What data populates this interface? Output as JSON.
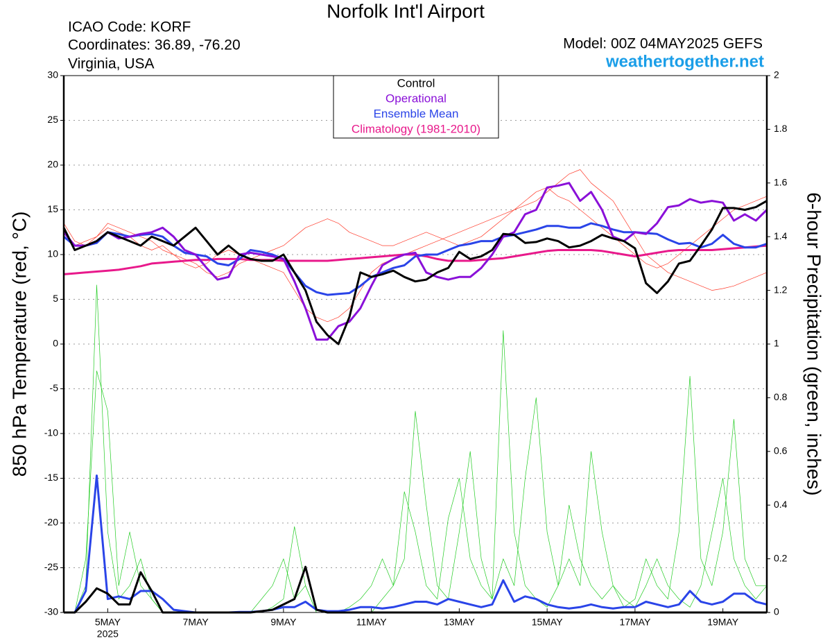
{
  "chart_data": {
    "type": "line",
    "title": "Norfolk Int'l Airport",
    "info_left": [
      "ICAO Code: KORF",
      "Coordinates: 36.89, -76.20",
      "Virginia, USA"
    ],
    "info_right": "Model: 00Z 04MAY2025 GEFS",
    "site": "weathertogether.net",
    "ylabel": "850 hPa Temperature (red, °C)",
    "y2label": "6-hour Precipitation (green, inches)",
    "year_label": "2025",
    "categories": [
      null,
      null,
      null,
      null,
      "5MAY",
      null,
      null,
      null,
      null,
      null,
      null,
      null,
      "7MAY",
      null,
      null,
      null,
      null,
      null,
      null,
      null,
      "9MAY",
      null,
      null,
      null,
      null,
      null,
      null,
      null,
      "11MAY",
      null,
      null,
      null,
      null,
      null,
      null,
      null,
      "13MAY",
      null,
      null,
      null,
      null,
      null,
      null,
      null,
      "15MAY",
      null,
      null,
      null,
      null,
      null,
      null,
      null,
      "17MAY",
      null,
      null,
      null,
      null,
      null,
      null,
      null,
      "19MAY",
      null,
      null,
      null,
      null
    ],
    "ylim": [
      -30,
      30
    ],
    "yticks": [
      -30,
      -25,
      -20,
      -15,
      -10,
      -5,
      0,
      5,
      10,
      15,
      20,
      25,
      30
    ],
    "y2lim": [
      0,
      2
    ],
    "y2ticks": [
      0,
      0.2,
      0.4,
      0.6,
      0.8,
      1,
      1.2,
      1.4,
      1.6,
      1.8,
      2
    ],
    "grid": true,
    "legend": "top-center",
    "series": [
      {
        "color": "#ff3a2a",
        "width": 0.7,
        "values": [
          13.5,
          11.5,
          11,
          12,
          13,
          12.5,
          12,
          11,
          10.5,
          11,
          10,
          9,
          8.5,
          9,
          10,
          10.5,
          10,
          9.5,
          9,
          8.5,
          8,
          6,
          4,
          3,
          2.5,
          3,
          4,
          6,
          8,
          9,
          9.5,
          10,
          10.5,
          11,
          11.5,
          12,
          12.5,
          13,
          13.5,
          14,
          14.5,
          15,
          15.5,
          16,
          17,
          18,
          19,
          19.5,
          18,
          17,
          16,
          14,
          12,
          10,
          9,
          8,
          7.5,
          7,
          6.5,
          6,
          6.2,
          6.5,
          7,
          7.5,
          8
        ]
      },
      {
        "color": "#ff3a2a",
        "width": 0.7,
        "values": [
          12,
          11,
          11.5,
          12,
          13.5,
          13,
          12.5,
          12,
          11.5,
          10.5,
          10,
          9.5,
          9,
          8,
          7.5,
          8,
          9,
          9.5,
          10,
          10.5,
          11,
          12,
          13,
          13.5,
          14,
          13.5,
          12.5,
          12,
          11.5,
          11,
          11,
          11.5,
          12,
          12.5,
          12,
          11.5,
          11,
          11.5,
          12,
          13,
          14,
          15,
          16,
          17,
          17.5,
          16.5,
          16,
          15,
          14,
          13,
          12,
          11,
          10,
          9,
          8.5,
          9,
          10,
          11,
          12,
          13,
          14,
          15,
          15.5,
          16,
          16.5
        ]
      },
      {
        "color": "#22cc22",
        "width": 0.7,
        "axis": "y2",
        "values": [
          0,
          0,
          0.1,
          1.22,
          0.3,
          0.05,
          0.1,
          0.2,
          0.05,
          0,
          0,
          0,
          0,
          0,
          0,
          0,
          0,
          0,
          0,
          0.02,
          0.05,
          0.32,
          0.1,
          0,
          0,
          0,
          0,
          0,
          0,
          0.05,
          0.1,
          0.2,
          0.75,
          0.4,
          0.1,
          0.05,
          0.3,
          0.6,
          0.2,
          0.05,
          1.05,
          0.3,
          0.1,
          0.05,
          0.02,
          0.1,
          0.4,
          0.2,
          0.1,
          0.05,
          0.1,
          0.02,
          0.05,
          0.2,
          0.1,
          0.05,
          0.3,
          0.88,
          0.2,
          0.1,
          0.3,
          0.72,
          0.2,
          0.1,
          0.1
        ]
      },
      {
        "color": "#22cc22",
        "width": 0.7,
        "axis": "y2",
        "values": [
          0,
          0,
          0.2,
          0.9,
          0.75,
          0.1,
          0.3,
          0.1,
          0.05,
          0,
          0,
          0,
          0,
          0,
          0,
          0,
          0,
          0,
          0.05,
          0.1,
          0.2,
          0.05,
          0.1,
          0,
          0,
          0,
          0.02,
          0.05,
          0.1,
          0.2,
          0.1,
          0.45,
          0.3,
          0.1,
          0.05,
          0.35,
          0.5,
          0.2,
          0.1,
          0.05,
          0.2,
          0.1,
          0.5,
          0.8,
          0.3,
          0.1,
          0.2,
          0.1,
          0.6,
          0.3,
          0.1,
          0.05,
          0.02,
          0.1,
          0.2,
          0.1,
          0.05,
          0.02,
          0.1,
          0.3,
          0.5,
          0.2,
          0.1,
          0.05,
          0.1
        ]
      },
      {
        "name": "Climatology (1981-2010)",
        "color": "#e8198b",
        "width": 3,
        "values": [
          7.8,
          7.9,
          8.0,
          8.1,
          8.2,
          8.3,
          8.5,
          8.7,
          9.0,
          9.1,
          9.2,
          9.3,
          9.4,
          9.4,
          9.5,
          9.5,
          9.5,
          9.4,
          9.4,
          9.4,
          9.3,
          9.3,
          9.3,
          9.3,
          9.3,
          9.4,
          9.5,
          9.6,
          9.7,
          9.8,
          9.9,
          10.0,
          10.0,
          9.8,
          9.5,
          9.3,
          9.3,
          9.3,
          9.4,
          9.5,
          9.6,
          9.8,
          10.0,
          10.2,
          10.4,
          10.5,
          10.5,
          10.5,
          10.5,
          10.4,
          10.2,
          10.0,
          9.8,
          10.0,
          10.2,
          10.4,
          10.5,
          10.5,
          10.5,
          10.5,
          10.6,
          10.7,
          10.8,
          10.9,
          11.0
        ]
      },
      {
        "name": "Ensemble Mean",
        "color": "#2a44e8",
        "width": 3,
        "values": [
          12,
          11,
          11,
          11.3,
          12.5,
          12.3,
          12,
          12.2,
          12.3,
          12,
          11,
          10.2,
          10,
          9.8,
          9,
          8.8,
          9.5,
          10.5,
          10.3,
          10,
          9.5,
          8,
          6.5,
          5.8,
          5.5,
          5.6,
          5.7,
          6.5,
          7.5,
          8,
          8.5,
          8.8,
          9.8,
          10,
          10,
          10.5,
          11,
          11.2,
          11.5,
          11.5,
          12,
          12.2,
          12.5,
          12.8,
          13.2,
          13.2,
          13,
          13,
          13.5,
          13.2,
          12.8,
          12.5,
          12.5,
          12.4,
          12.3,
          11.7,
          11.2,
          11.3,
          10.8,
          11.2,
          12.2,
          11.2,
          10.8,
          10.8,
          11.2
        ]
      },
      {
        "name": "Operational",
        "color": "#8a10d8",
        "width": 3,
        "values": [
          12.5,
          11,
          11,
          11.5,
          12.5,
          11.8,
          12,
          12.3,
          12.5,
          13,
          12,
          10.5,
          10,
          8.5,
          7.2,
          7.5,
          10,
          10.2,
          10,
          9.8,
          9.5,
          7,
          4,
          0.5,
          0.5,
          2,
          2.5,
          4,
          6.5,
          8.8,
          9.5,
          10,
          10.2,
          8,
          7.5,
          7.2,
          7.5,
          7.5,
          8.5,
          10,
          12,
          12.5,
          14.5,
          15,
          17.5,
          17.7,
          18,
          16,
          17,
          15,
          12,
          11.5,
          12.5,
          12.3,
          13.5,
          15.3,
          15.5,
          16.2,
          15.8,
          16,
          15.8,
          13.8,
          14.5,
          13.8,
          15
        ]
      },
      {
        "name": "Control",
        "color": "#000000",
        "width": 3,
        "values": [
          13,
          10.5,
          11,
          11.5,
          12.5,
          12,
          11.5,
          11,
          12,
          11.5,
          11,
          12,
          13,
          11.5,
          10,
          11,
          10,
          9.5,
          9.3,
          9.3,
          10,
          8,
          6,
          2.5,
          1,
          0,
          3,
          8,
          7.5,
          7.8,
          8.2,
          7.5,
          7,
          7.2,
          8,
          8.5,
          10.3,
          9.5,
          9.8,
          10.5,
          12.3,
          12.2,
          11.3,
          11.4,
          11.8,
          11.5,
          10.8,
          11,
          11.5,
          12.2,
          11.8,
          11.5,
          10.7,
          6.8,
          5.7,
          7,
          9,
          9.3,
          11,
          12.8,
          15.2,
          15.2,
          15,
          15.3,
          16
        ]
      },
      {
        "color": "#2a44e8",
        "width": 3,
        "axis": "y2",
        "values": [
          0,
          0,
          0.08,
          0.51,
          0.05,
          0.06,
          0.05,
          0.08,
          0.08,
          0.05,
          0.01,
          0.005,
          0,
          0,
          0,
          0,
          0.002,
          0.002,
          0.005,
          0.01,
          0.02,
          0.02,
          0.04,
          0.01,
          0.005,
          0.005,
          0.01,
          0.02,
          0.02,
          0.015,
          0.02,
          0.03,
          0.04,
          0.04,
          0.03,
          0.05,
          0.04,
          0.03,
          0.02,
          0.03,
          0.12,
          0.04,
          0.06,
          0.05,
          0.03,
          0.02,
          0.015,
          0.02,
          0.03,
          0.02,
          0.015,
          0.02,
          0.02,
          0.04,
          0.03,
          0.02,
          0.03,
          0.08,
          0.04,
          0.03,
          0.04,
          0.07,
          0.07,
          0.04,
          0.03
        ]
      },
      {
        "color": "#000000",
        "width": 3,
        "axis": "y2",
        "values": [
          0,
          0,
          0.04,
          0.09,
          0.07,
          0.03,
          0.03,
          0.15,
          0.08,
          0,
          0,
          0,
          0,
          0,
          0,
          0,
          0,
          0,
          0.005,
          0.01,
          0.03,
          0.05,
          0.17,
          0.01,
          0,
          0,
          0,
          0,
          0,
          0,
          0,
          0,
          0,
          0,
          0,
          0,
          0,
          0,
          0,
          0,
          0,
          0,
          0,
          0,
          0,
          0,
          0,
          0,
          0,
          0,
          0,
          0,
          0,
          0,
          0,
          0,
          0,
          0,
          0,
          0,
          0,
          0,
          0,
          0,
          0
        ]
      }
    ]
  }
}
